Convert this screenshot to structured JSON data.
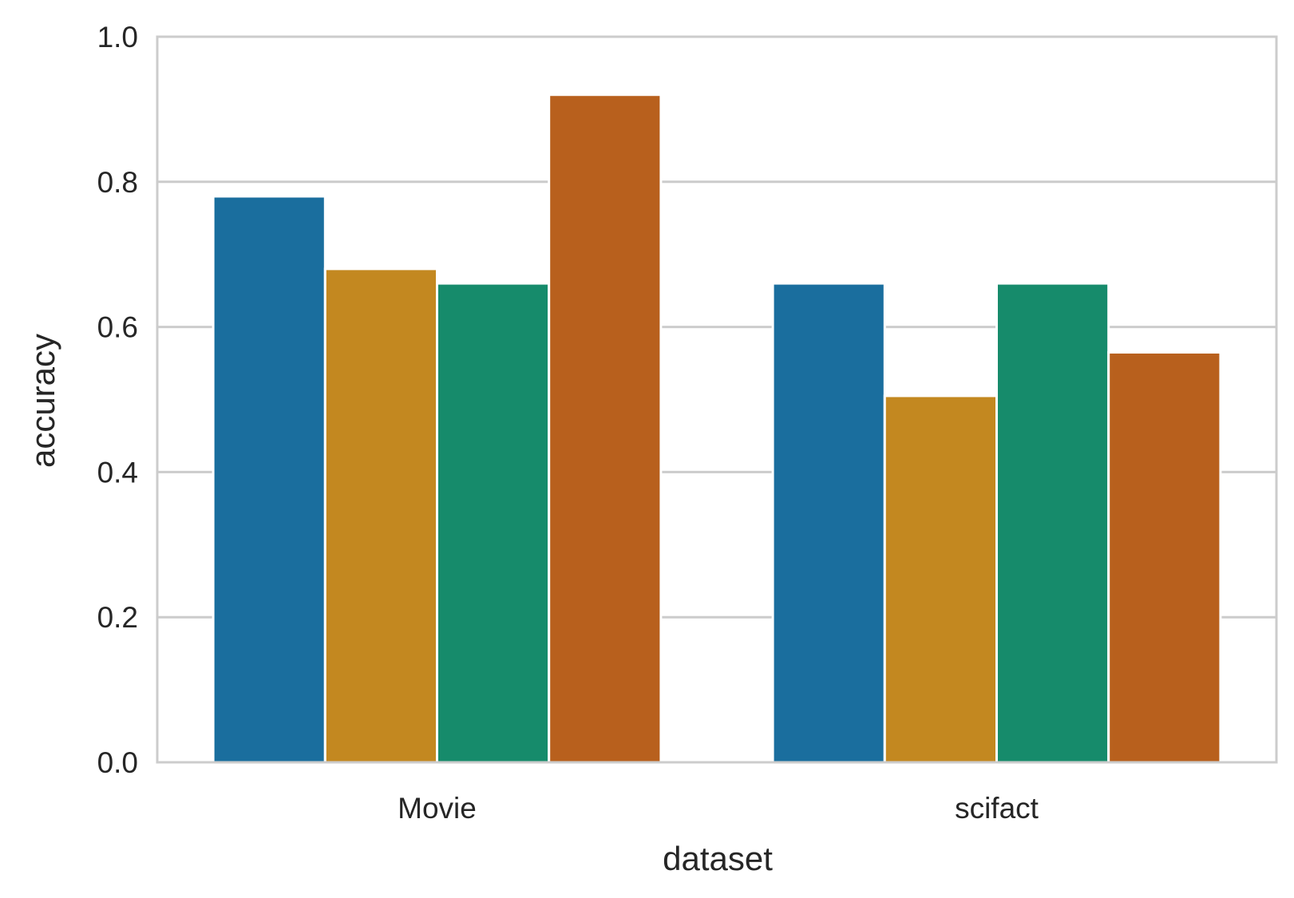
{
  "chart_data": {
    "type": "bar",
    "categories": [
      "Movie",
      "scifact"
    ],
    "series": [
      {
        "values": [
          0.78,
          0.66
        ],
        "color": "#1a6e9e"
      },
      {
        "values": [
          0.68,
          0.505
        ],
        "color": "#c38820"
      },
      {
        "values": [
          0.66,
          0.66
        ],
        "color": "#168b6b"
      },
      {
        "values": [
          0.92,
          0.565
        ],
        "color": "#b8601d"
      }
    ],
    "title": "",
    "xlabel": "dataset",
    "ylabel": "accuracy",
    "ylim": [
      0,
      1.0
    ],
    "yticks": [
      "0.0",
      "0.2",
      "0.4",
      "0.6",
      "0.8",
      "1.0"
    ],
    "grid": "horizontal",
    "legend": "none"
  },
  "style": {
    "grid_color": "#cccccc",
    "text_color": "#262626",
    "background": "#ffffff"
  }
}
